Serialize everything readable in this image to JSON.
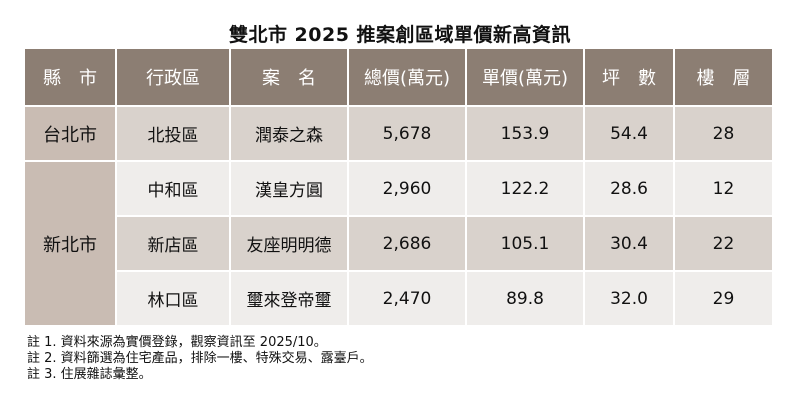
{
  "title": "雙北市 2025 推案創區域單價新高資訊",
  "headers": {
    "county": "縣　市",
    "district": "行政區",
    "project": "案　名",
    "total_price": "總價(萬元)",
    "unit_price": "單價(萬元)",
    "ping": "坪　數",
    "floors": "樓　層"
  },
  "rows": [
    {
      "county": "台北市",
      "district": "北投區",
      "project": "潤泰之森",
      "total_price": "5,678",
      "unit_price": "153.9",
      "ping": "54.4",
      "floors": "28"
    },
    {
      "county": "新北市",
      "district": "中和區",
      "project": "漢皇方圓",
      "total_price": "2,960",
      "unit_price": "122.2",
      "ping": "28.6",
      "floors": "12"
    },
    {
      "county": "",
      "district": "新店區",
      "project": "友座明明德",
      "total_price": "2,686",
      "unit_price": "105.1",
      "ping": "30.4",
      "floors": "22"
    },
    {
      "county": "",
      "district": "林口區",
      "project": "璽來登帝璽",
      "total_price": "2,470",
      "unit_price": "89.8",
      "ping": "32.0",
      "floors": "29"
    }
  ],
  "notes": [
    "註 1. 資料來源為實價登錄，觀察資訊至 2025/10。",
    "註 2. 資料篩選為住宅產品，排除一樓、特殊交易、露臺戶。",
    "註 3. 住展雜誌彙整。"
  ]
}
